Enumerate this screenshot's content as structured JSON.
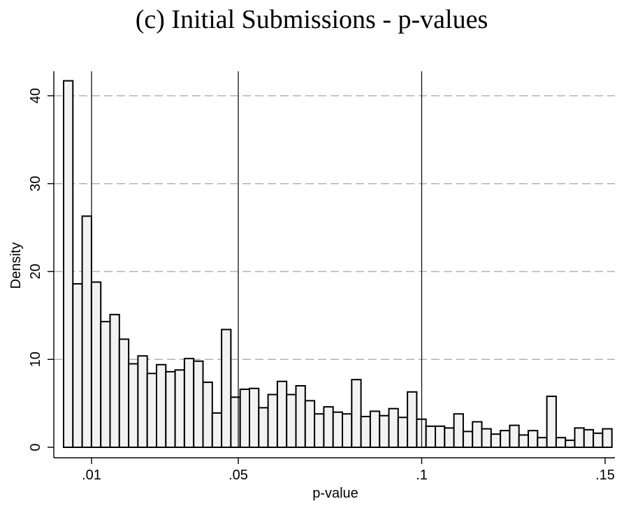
{
  "chart_data": {
    "type": "bar",
    "title": "(c) Initial Submissions - p-values",
    "xlabel": "p-value",
    "ylabel": "Density",
    "xlim": [
      0,
      0.15
    ],
    "ylim": [
      0,
      42
    ],
    "x_ticks": [
      {
        "value": 0.01,
        "label": ".01"
      },
      {
        "value": 0.05,
        "label": ".05"
      },
      {
        "value": 0.1,
        "label": ".1"
      },
      {
        "value": 0.15,
        "label": ".15"
      }
    ],
    "y_ticks": [
      {
        "value": 0,
        "label": "0"
      },
      {
        "value": 10,
        "label": "10"
      },
      {
        "value": 20,
        "label": "20"
      },
      {
        "value": 30,
        "label": "30"
      },
      {
        "value": 40,
        "label": "40"
      }
    ],
    "grid": {
      "y": true,
      "x": false
    },
    "vertical_lines": [
      0.01,
      0.05,
      0.1
    ],
    "bin_width": 0.0025,
    "x_start": 0,
    "values": [
      41.7,
      18.6,
      26.3,
      18.8,
      14.3,
      15.1,
      12.3,
      9.5,
      10.4,
      8.4,
      9.4,
      8.6,
      8.8,
      10.1,
      9.8,
      7.4,
      3.9,
      13.4,
      5.7,
      6.6,
      6.7,
      4.5,
      6.0,
      7.5,
      6.0,
      7.0,
      5.3,
      3.8,
      4.6,
      4.0,
      3.8,
      7.7,
      3.5,
      4.1,
      3.6,
      4.4,
      3.4,
      6.3,
      3.2,
      2.4,
      2.4,
      2.2,
      3.8,
      1.8,
      2.9,
      2.1,
      1.5,
      1.9,
      2.5,
      1.4,
      1.9,
      1.1,
      5.8,
      1.1,
      0.8,
      2.2,
      2.0,
      1.6,
      2.1
    ]
  }
}
